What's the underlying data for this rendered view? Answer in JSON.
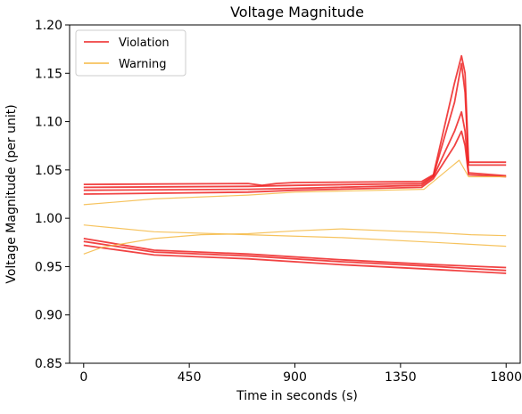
{
  "chart_data": {
    "type": "line",
    "title": "Voltage Magnitude",
    "xlabel": "Time in seconds (s)",
    "ylabel": "Voltage Magnitude (per unit)",
    "xlim": [
      -60,
      1860
    ],
    "ylim": [
      0.85,
      1.2
    ],
    "x_ticks": [
      0,
      450,
      900,
      1350,
      1800
    ],
    "y_ticks": [
      0.85,
      0.9,
      0.95,
      1.0,
      1.05,
      1.1,
      1.15,
      1.2
    ],
    "y_tick_labels": [
      "0.85",
      "0.90",
      "0.95",
      "1.00",
      "1.05",
      "1.10",
      "1.15",
      "1.20"
    ],
    "grid": false,
    "legend_position": "upper-left",
    "colors": {
      "Violation": "#ee2222",
      "Warning": "#f5b942"
    },
    "legend": [
      {
        "label": "Violation",
        "color": "#ee2222"
      },
      {
        "label": "Warning",
        "color": "#f5b942"
      }
    ],
    "series": [
      {
        "name": "Violation",
        "color": "#ee2222",
        "points": [
          [
            0,
            1.035
          ],
          [
            700,
            1.036
          ],
          [
            760,
            1.034
          ],
          [
            820,
            1.036
          ],
          [
            900,
            1.037
          ],
          [
            1440,
            1.038
          ],
          [
            1490,
            1.045
          ],
          [
            1580,
            1.14
          ],
          [
            1610,
            1.168
          ],
          [
            1625,
            1.15
          ],
          [
            1640,
            1.058
          ],
          [
            1800,
            1.058
          ]
        ]
      },
      {
        "name": "Violation",
        "color": "#ee2222",
        "points": [
          [
            0,
            1.032
          ],
          [
            700,
            1.033
          ],
          [
            900,
            1.034
          ],
          [
            1440,
            1.036
          ],
          [
            1490,
            1.044
          ],
          [
            1580,
            1.12
          ],
          [
            1610,
            1.16
          ],
          [
            1625,
            1.13
          ],
          [
            1640,
            1.055
          ],
          [
            1800,
            1.055
          ]
        ]
      },
      {
        "name": "Violation",
        "color": "#ee2222",
        "points": [
          [
            0,
            1.029
          ],
          [
            700,
            1.03
          ],
          [
            900,
            1.031
          ],
          [
            1440,
            1.034
          ],
          [
            1490,
            1.043
          ],
          [
            1580,
            1.09
          ],
          [
            1610,
            1.11
          ],
          [
            1625,
            1.09
          ],
          [
            1640,
            1.047
          ],
          [
            1800,
            1.044
          ]
        ]
      },
      {
        "name": "Violation",
        "color": "#ee2222",
        "points": [
          [
            0,
            1.025
          ],
          [
            700,
            1.027
          ],
          [
            900,
            1.029
          ],
          [
            1440,
            1.032
          ],
          [
            1490,
            1.041
          ],
          [
            1580,
            1.075
          ],
          [
            1610,
            1.09
          ],
          [
            1625,
            1.075
          ],
          [
            1640,
            1.045
          ],
          [
            1800,
            1.043
          ]
        ]
      },
      {
        "name": "Violation",
        "color": "#ee2222",
        "points": [
          [
            0,
            0.979
          ],
          [
            300,
            0.967
          ],
          [
            700,
            0.963
          ],
          [
            1100,
            0.957
          ],
          [
            1500,
            0.952
          ],
          [
            1800,
            0.949
          ]
        ]
      },
      {
        "name": "Violation",
        "color": "#ee2222",
        "points": [
          [
            0,
            0.976
          ],
          [
            300,
            0.965
          ],
          [
            700,
            0.961
          ],
          [
            1100,
            0.955
          ],
          [
            1500,
            0.95
          ],
          [
            1800,
            0.946
          ]
        ]
      },
      {
        "name": "Violation",
        "color": "#ee2222",
        "points": [
          [
            0,
            0.972
          ],
          [
            300,
            0.962
          ],
          [
            700,
            0.958
          ],
          [
            1100,
            0.952
          ],
          [
            1500,
            0.947
          ],
          [
            1800,
            0.943
          ]
        ]
      },
      {
        "name": "Warning",
        "color": "#f5b942",
        "points": [
          [
            0,
            1.014
          ],
          [
            300,
            1.02
          ],
          [
            700,
            1.024
          ],
          [
            900,
            1.027
          ],
          [
            1450,
            1.03
          ],
          [
            1600,
            1.06
          ],
          [
            1640,
            1.043
          ],
          [
            1800,
            1.043
          ]
        ]
      },
      {
        "name": "Warning",
        "color": "#f5b942",
        "points": [
          [
            0,
            0.993
          ],
          [
            300,
            0.986
          ],
          [
            700,
            0.983
          ],
          [
            1100,
            0.98
          ],
          [
            1500,
            0.975
          ],
          [
            1800,
            0.971
          ]
        ]
      },
      {
        "name": "Warning",
        "color": "#f5b942",
        "points": [
          [
            0,
            0.963
          ],
          [
            80,
            0.97
          ],
          [
            300,
            0.979
          ],
          [
            500,
            0.983
          ],
          [
            700,
            0.984
          ],
          [
            900,
            0.987
          ],
          [
            1100,
            0.989
          ],
          [
            1300,
            0.987
          ],
          [
            1500,
            0.985
          ],
          [
            1650,
            0.983
          ],
          [
            1800,
            0.982
          ]
        ]
      }
    ]
  }
}
